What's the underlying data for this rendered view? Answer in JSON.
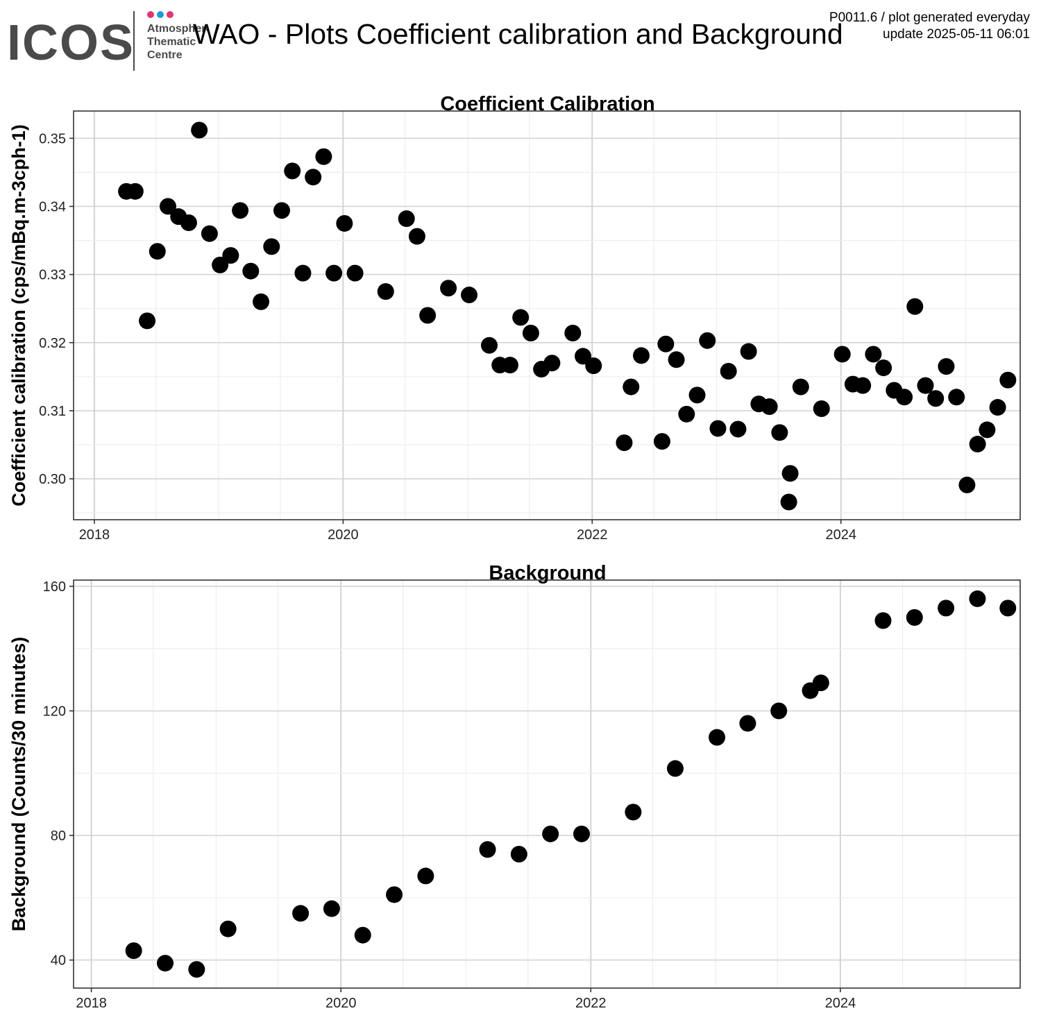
{
  "header": {
    "logo": {
      "wordmark": "ICOS",
      "lines": [
        "Atmosphere",
        "Thematic",
        "Centre"
      ],
      "dot_colors": [
        "#e8336e",
        "#1e9be0",
        "#e8336e"
      ],
      "wordmark_color": "#4a4a4a"
    },
    "title": "WAO - Plots Coefficient calibration and Background",
    "meta_line1": "P0011.6 / plot generated everyday",
    "meta_line2": "update  2025-05-11 06:01"
  },
  "colors": {
    "point": "#000000",
    "grid_major": "#d4d4d4",
    "grid_minor": "#ededed",
    "frame": "#333333"
  },
  "chart_data": [
    {
      "type": "scatter",
      "title": "Coefficient Calibration",
      "xlabel": "",
      "ylabel": "Coefficient calibration (cps/mBq.m-3cph-1)",
      "xlim": [
        "2017-11-01",
        "2025-06-10"
      ],
      "ylim": [
        0.294,
        0.354
      ],
      "xticks": [
        "2018-01-01",
        "2020-01-01",
        "2022-01-01",
        "2024-01-01"
      ],
      "xtick_labels": [
        "2018",
        "2020",
        "2022",
        "2024"
      ],
      "yticks": [
        0.3,
        0.31,
        0.32,
        0.33,
        0.34,
        0.35
      ],
      "ytick_labels": [
        "0.30",
        "0.31",
        "0.32",
        "0.33",
        "0.34",
        "0.35"
      ],
      "grid": true,
      "points": [
        [
          "2018-04-05",
          0.3422
        ],
        [
          "2018-05-01",
          0.3422
        ],
        [
          "2018-06-05",
          0.3232
        ],
        [
          "2018-07-05",
          0.3334
        ],
        [
          "2018-08-05",
          0.34
        ],
        [
          "2018-09-05",
          0.3385
        ],
        [
          "2018-10-05",
          0.3376
        ],
        [
          "2018-11-05",
          0.3512
        ],
        [
          "2018-12-05",
          0.336
        ],
        [
          "2019-01-05",
          0.3314
        ],
        [
          "2019-02-05",
          0.3328
        ],
        [
          "2019-03-05",
          0.3394
        ],
        [
          "2019-04-05",
          0.3305
        ],
        [
          "2019-05-05",
          0.326
        ],
        [
          "2019-06-05",
          0.3341
        ],
        [
          "2019-07-05",
          0.3394
        ],
        [
          "2019-08-05",
          0.3452
        ],
        [
          "2019-09-05",
          0.3302
        ],
        [
          "2019-10-05",
          0.3443
        ],
        [
          "2019-11-05",
          0.3473
        ],
        [
          "2019-12-05",
          0.3302
        ],
        [
          "2020-01-05",
          0.3375
        ],
        [
          "2020-02-05",
          0.3302
        ],
        [
          "2020-05-05",
          0.3275
        ],
        [
          "2020-07-05",
          0.3382
        ],
        [
          "2020-08-05",
          0.3356
        ],
        [
          "2020-09-05",
          0.324
        ],
        [
          "2020-11-05",
          0.328
        ],
        [
          "2021-01-05",
          0.327
        ],
        [
          "2021-03-05",
          0.3196
        ],
        [
          "2021-04-05",
          0.3167
        ],
        [
          "2021-05-05",
          0.3167
        ],
        [
          "2021-06-05",
          0.3237
        ],
        [
          "2021-07-05",
          0.3214
        ],
        [
          "2021-08-05",
          0.3161
        ],
        [
          "2021-09-05",
          0.317
        ],
        [
          "2021-11-05",
          0.3214
        ],
        [
          "2021-12-05",
          0.318
        ],
        [
          "2022-01-05",
          0.3166
        ],
        [
          "2022-04-05",
          0.3053
        ],
        [
          "2022-04-25",
          0.3135
        ],
        [
          "2022-05-25",
          0.3181
        ],
        [
          "2022-07-25",
          0.3055
        ],
        [
          "2022-08-05",
          0.3198
        ],
        [
          "2022-09-05",
          0.3175
        ],
        [
          "2022-10-05",
          0.3095
        ],
        [
          "2022-11-05",
          0.3123
        ],
        [
          "2022-12-05",
          0.3203
        ],
        [
          "2023-01-05",
          0.3074
        ],
        [
          "2023-02-05",
          0.3158
        ],
        [
          "2023-03-05",
          0.3073
        ],
        [
          "2023-04-05",
          0.3187
        ],
        [
          "2023-05-05",
          0.311
        ],
        [
          "2023-06-05",
          0.3106
        ],
        [
          "2023-07-05",
          0.3068
        ],
        [
          "2023-08-01",
          0.2966
        ],
        [
          "2023-08-05",
          0.3008
        ],
        [
          "2023-09-05",
          0.3135
        ],
        [
          "2023-11-05",
          0.3103
        ],
        [
          "2024-01-05",
          0.3183
        ],
        [
          "2024-02-05",
          0.3139
        ],
        [
          "2024-03-05",
          0.3137
        ],
        [
          "2024-04-05",
          0.3183
        ],
        [
          "2024-05-05",
          0.3163
        ],
        [
          "2024-06-05",
          0.313
        ],
        [
          "2024-07-05",
          0.312
        ],
        [
          "2024-08-05",
          0.3253
        ],
        [
          "2024-09-05",
          0.3137
        ],
        [
          "2024-10-05",
          0.3118
        ],
        [
          "2024-11-05",
          0.3165
        ],
        [
          "2024-12-05",
          0.312
        ],
        [
          "2025-01-05",
          0.2991
        ],
        [
          "2025-02-05",
          0.3051
        ],
        [
          "2025-03-05",
          0.3072
        ],
        [
          "2025-04-05",
          0.3105
        ],
        [
          "2025-05-05",
          0.3145
        ]
      ]
    },
    {
      "type": "scatter",
      "title": "Background",
      "xlabel": "",
      "ylabel": "Background (Counts/30 minutes)",
      "xlim": [
        "2017-11-10",
        "2025-06-10"
      ],
      "ylim": [
        31,
        162
      ],
      "xticks": [
        "2018-01-01",
        "2020-01-01",
        "2022-01-01",
        "2024-01-01"
      ],
      "xtick_labels": [
        "2018",
        "2020",
        "2022",
        "2024"
      ],
      "yticks": [
        40,
        80,
        120,
        160
      ],
      "ytick_labels": [
        "40",
        "80",
        "120",
        "160"
      ],
      "grid": true,
      "points": [
        [
          "2018-05-05",
          43
        ],
        [
          "2018-08-05",
          39
        ],
        [
          "2018-11-05",
          37
        ],
        [
          "2019-02-05",
          50
        ],
        [
          "2019-09-05",
          55
        ],
        [
          "2019-12-05",
          56.5
        ],
        [
          "2020-03-05",
          48
        ],
        [
          "2020-06-05",
          61
        ],
        [
          "2020-09-05",
          67
        ],
        [
          "2021-03-05",
          75.5
        ],
        [
          "2021-06-05",
          74
        ],
        [
          "2021-09-05",
          80.5
        ],
        [
          "2021-12-05",
          80.5
        ],
        [
          "2022-05-05",
          87.5
        ],
        [
          "2022-09-05",
          101.5
        ],
        [
          "2023-01-05",
          111.5
        ],
        [
          "2023-04-05",
          116
        ],
        [
          "2023-07-05",
          120
        ],
        [
          "2023-10-05",
          126.5
        ],
        [
          "2023-11-05",
          129
        ],
        [
          "2024-05-05",
          149
        ],
        [
          "2024-08-05",
          150
        ],
        [
          "2024-11-05",
          153
        ],
        [
          "2025-02-05",
          156
        ],
        [
          "2025-05-05",
          153
        ]
      ]
    }
  ]
}
